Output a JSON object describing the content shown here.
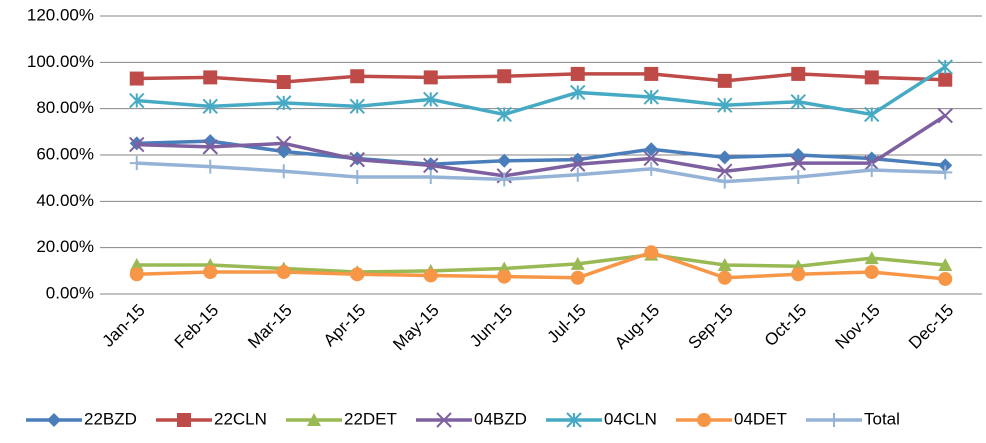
{
  "chart_data": {
    "type": "line",
    "categories": [
      "Jan-15",
      "Feb-15",
      "Mar-15",
      "Apr-15",
      "May-15",
      "Jun-15",
      "Jul-15",
      "Aug-15",
      "Sep-15",
      "Oct-15",
      "Nov-15",
      "Dec-15"
    ],
    "ylim": [
      0,
      120
    ],
    "yticks": [
      {
        "value": 0,
        "label": "0.00%"
      },
      {
        "value": 20,
        "label": "20.00%"
      },
      {
        "value": 40,
        "label": "40.00%"
      },
      {
        "value": 60,
        "label": "60.00%"
      },
      {
        "value": 80,
        "label": "80.00%"
      },
      {
        "value": 100,
        "label": "100.00%"
      },
      {
        "value": 120,
        "label": "120.00%"
      }
    ],
    "grid": true,
    "legend": "bottom",
    "series": [
      {
        "name": "22BZD",
        "color": "#4a7ebb",
        "marker": "diamond",
        "values": [
          65,
          66,
          61.5,
          58.5,
          56,
          57.5,
          58,
          62.5,
          59,
          60,
          58.5,
          55.5
        ]
      },
      {
        "name": "22CLN",
        "color": "#be4b48",
        "marker": "square",
        "values": [
          93,
          93.5,
          91.5,
          94,
          93.5,
          94,
          95,
          95,
          92,
          95,
          93.5,
          92.5
        ]
      },
      {
        "name": "22DET",
        "color": "#98b954",
        "marker": "triangle",
        "values": [
          12.5,
          12.5,
          11,
          9.5,
          10,
          11,
          13,
          17,
          12.5,
          12,
          15.5,
          12.5
        ]
      },
      {
        "name": "04BZD",
        "color": "#7d60a0",
        "marker": "x",
        "values": [
          64.5,
          63.5,
          65,
          58,
          55.5,
          51,
          56,
          58.5,
          53,
          56.5,
          56.5,
          77
        ]
      },
      {
        "name": "04CLN",
        "color": "#46aac5",
        "marker": "star",
        "values": [
          83.5,
          81,
          82.5,
          81,
          84,
          77.5,
          87,
          85,
          81.5,
          83,
          77.5,
          98
        ]
      },
      {
        "name": "04DET",
        "color": "#f79646",
        "marker": "circle",
        "values": [
          8.5,
          9.5,
          9.5,
          8.5,
          8,
          7.5,
          7,
          18,
          7,
          8.5,
          9.5,
          6.5
        ]
      },
      {
        "name": "Total",
        "color": "#95b3d7",
        "marker": "plus",
        "values": [
          56.5,
          55,
          53,
          50.5,
          50.5,
          49.5,
          51.5,
          54,
          48.5,
          50.5,
          53.5,
          52.5
        ]
      }
    ]
  }
}
